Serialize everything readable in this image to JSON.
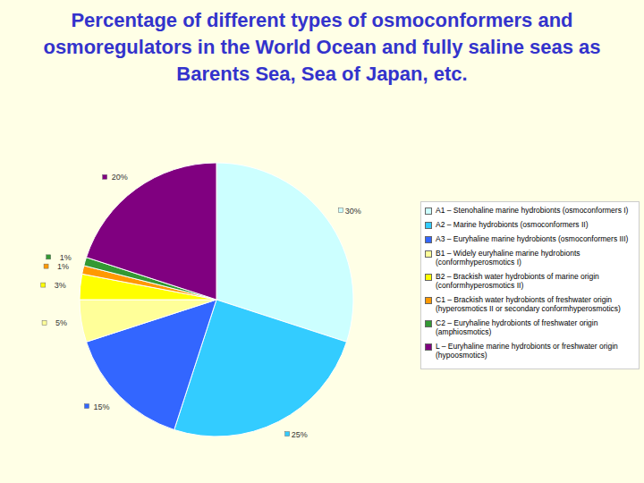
{
  "chart_data": {
    "type": "pie",
    "title": "Percentage of different types of osmoconformers and osmoregulators in the World Ocean and fully saline seas as Barents Sea, Sea of Japan, etc.",
    "categories": [
      "A1 – Stenohaline marine hydrobionts (osmoconformers I)",
      "A2 – Marine hydrobionts (osmoconformers II)",
      "A3 – Euryhaline marine hydrobionts (osmoconformers III)",
      "B1 – Widely euryhaline marine hydrobionts (conformhyperosmotics I)",
      "B2 – Brackish water hydrobionts of marine origin (conformhyperosmotics II)",
      "C1 – Brackish water hydrobionts of freshwater origin (hyperosmotics II or secondary conformhyperosmotics)",
      "C2 – Euryhaline hydrobionts of freshwater origin (amphiosmotics)",
      "L – Euryhaline marine hydrobionts or freshwater origin (hypoosmotics)"
    ],
    "values": [
      30,
      25,
      15,
      5,
      3,
      1,
      1,
      20
    ],
    "value_labels": [
      "30%",
      "25%",
      "15%",
      "5%",
      "3%",
      "1%",
      "1%",
      "20%"
    ],
    "colors": [
      "#ccffff",
      "#33ccff",
      "#3366ff",
      "#ffff99",
      "#ffff00",
      "#ff9900",
      "#339933",
      "#800080"
    ],
    "data_labels": true,
    "legend": "right"
  }
}
